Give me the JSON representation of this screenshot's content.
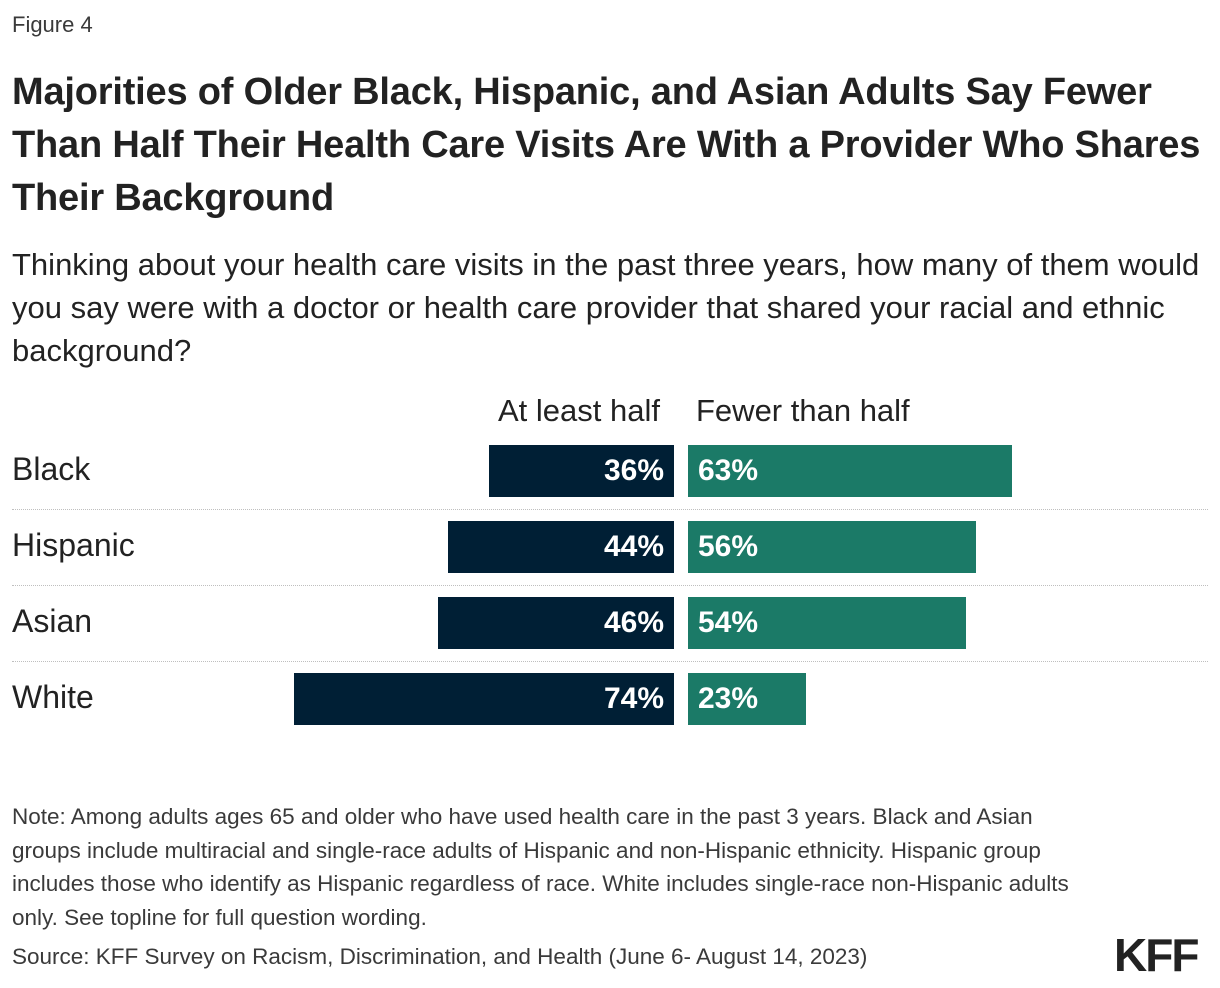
{
  "figure_label": "Figure 4",
  "title": "Majorities of Older Black, Hispanic, and Asian Adults Say Fewer Than Half Their Health Care Visits Are With a Provider Who Shares Their Background",
  "subtitle": "Thinking about your health care visits in the past three years, how many of them would you say were with a doctor or health care provider that shared your racial and ethnic background?",
  "note": "Note: Among adults ages 65 and older who have used health care in the past 3 years. Black and Asian groups include multiracial and single-race adults of Hispanic and non-Hispanic ethnicity. Hispanic group includes those who identify as Hispanic regardless of race. White includes single-race non-Hispanic adults only. See topline for full question wording.",
  "source": "Source: KFF Survey on Racism, Discrimination, and Health (June 6- August 14, 2023)",
  "logo": "KFF",
  "colors": {
    "at_least_half": "#001f35",
    "fewer_than_half": "#1b7a67"
  },
  "chart_data": {
    "type": "bar",
    "orientation": "horizontal-diverging",
    "categories": [
      "Black",
      "Hispanic",
      "Asian",
      "White"
    ],
    "series": [
      {
        "name": "At least half",
        "values": [
          36,
          44,
          46,
          74
        ],
        "labels": [
          "36%",
          "44%",
          "46%",
          "74%"
        ]
      },
      {
        "name": "Fewer than half",
        "values": [
          63,
          56,
          54,
          23
        ],
        "labels": [
          "63%",
          "56%",
          "54%",
          "23%"
        ]
      }
    ],
    "unit": "%",
    "xlim": [
      0,
      100
    ]
  }
}
